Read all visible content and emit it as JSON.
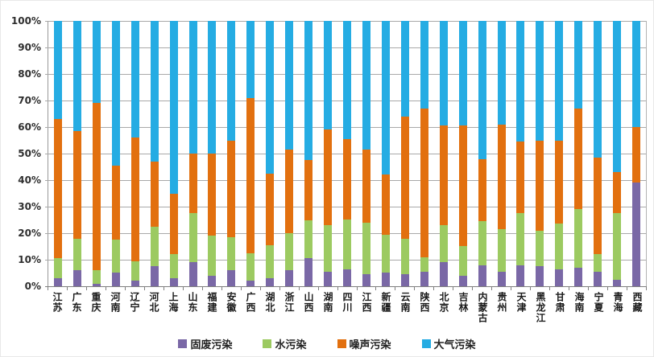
{
  "chart_data": {
    "type": "bar",
    "stacked": true,
    "percent_stacked": true,
    "title": "",
    "xlabel": "",
    "ylabel": "",
    "grid": true,
    "y_axis": {
      "min": 0,
      "max": 100,
      "step": 10,
      "ticks": [
        "0%",
        "10%",
        "20%",
        "30%",
        "40%",
        "50%",
        "60%",
        "70%",
        "80%",
        "90%",
        "100%"
      ]
    },
    "legend": {
      "position": "bottom",
      "entries": [
        "固废污染",
        "水污染",
        "噪声污染",
        "大气污染"
      ]
    },
    "categories": [
      "江苏",
      "广东",
      "重庆",
      "河南",
      "辽宁",
      "河北",
      "上海",
      "山东",
      "福建",
      "安徽",
      "广西",
      "湖北",
      "浙江",
      "山西",
      "湖南",
      "四川",
      "江西",
      "新疆",
      "云南",
      "陕西",
      "北京",
      "吉林",
      "内蒙古",
      "贵州",
      "天津",
      "黑龙江",
      "甘肃",
      "海南",
      "宁夏",
      "青海",
      "西藏"
    ],
    "series": [
      {
        "name": "固废污染",
        "color": "#7A68A6",
        "values": [
          3,
          6,
          1,
          5,
          2,
          7.5,
          3,
          9,
          4,
          6,
          2,
          3,
          6,
          10.5,
          5.5,
          6.5,
          4.5,
          5,
          4.5,
          5.5,
          9,
          4,
          8,
          5.5,
          8,
          7.5,
          6.5,
          7,
          5.5,
          2.5,
          39
        ]
      },
      {
        "name": "水污染",
        "color": "#9CCA61",
        "values": [
          7.5,
          12,
          5,
          12.5,
          7.5,
          15,
          9,
          18.5,
          15,
          12.5,
          10.5,
          12.5,
          14,
          14.5,
          17.5,
          18.5,
          19.5,
          14.5,
          13.5,
          5.5,
          14,
          11,
          16.5,
          16,
          19.5,
          13.5,
          17,
          22,
          6.5,
          25,
          0
        ]
      },
      {
        "name": "噪声污染",
        "color": "#E2700F",
        "values": [
          52.5,
          40.5,
          63,
          28,
          46.5,
          24.5,
          23,
          22.5,
          31,
          36.5,
          58.5,
          27,
          31.5,
          22.5,
          36,
          30.5,
          27.5,
          22.5,
          46,
          56,
          37.5,
          45.5,
          23.5,
          39.5,
          27,
          34,
          31.5,
          38,
          36.5,
          15.5,
          21
        ]
      },
      {
        "name": "大气污染",
        "color": "#25ACE3",
        "values": [
          37,
          41.5,
          31,
          54.5,
          44,
          53,
          65,
          50,
          50,
          45,
          29,
          57.5,
          48.5,
          52.5,
          41,
          44.5,
          48.5,
          58,
          36,
          33,
          39.5,
          39.5,
          52,
          39,
          45.5,
          45,
          45,
          33,
          51.5,
          57,
          40
        ]
      }
    ],
    "colors": {
      "solid_waste": "#7A68A6",
      "water": "#9CCA61",
      "noise": "#E2700F",
      "air": "#25ACE3",
      "gridline": "#a9a9a9",
      "axis": "#7f7f7f",
      "label_text": "#1a1a1a"
    }
  }
}
